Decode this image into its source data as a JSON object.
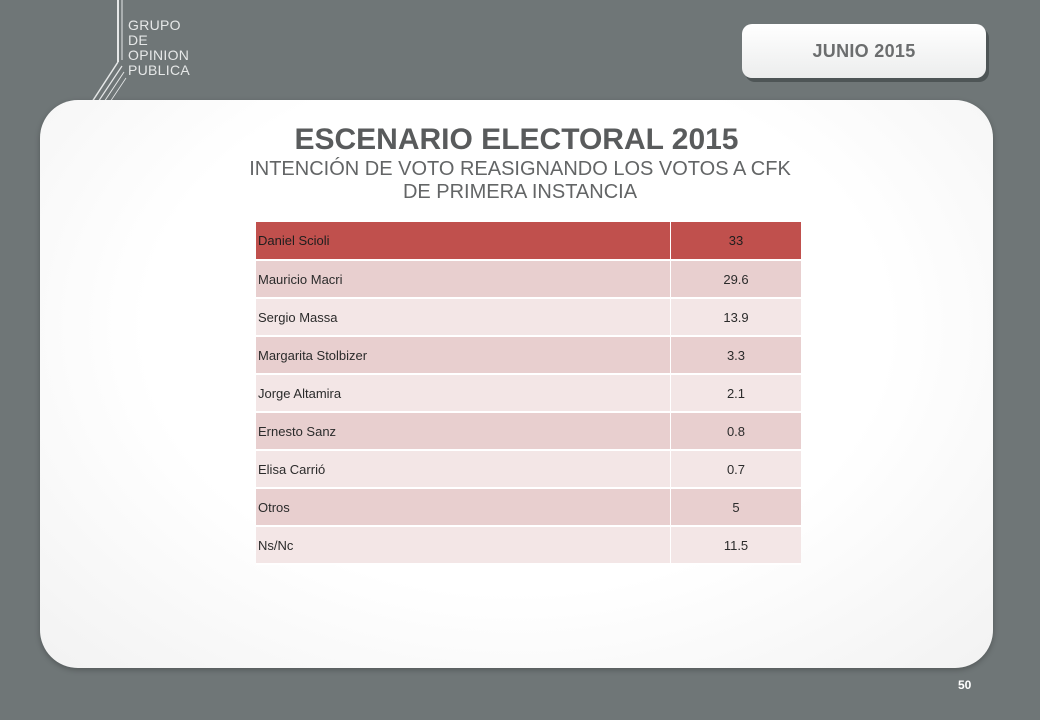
{
  "logo": {
    "lines": [
      "GRUPO",
      "DE",
      "OPINION",
      "PUBLICA"
    ]
  },
  "date_badge": "JUNIO 2015",
  "title": "ESCENARIO ELECTORAL 2015",
  "subtitle": "INTENCIÓN DE VOTO REASIGNANDO LOS VOTOS A CFK DE PRIMERA INSTANCIA",
  "table": {
    "rows": [
      {
        "name": "Daniel Scioli",
        "value": "33"
      },
      {
        "name": "Mauricio Macri",
        "value": "29.6"
      },
      {
        "name": "Sergio Massa",
        "value": "13.9"
      },
      {
        "name": "Margarita Stolbizer",
        "value": "3.3"
      },
      {
        "name": "Jorge Altamira",
        "value": "2.1"
      },
      {
        "name": "Ernesto Sanz",
        "value": "0.8"
      },
      {
        "name": "Elisa Carrió",
        "value": "0.7"
      },
      {
        "name": "Otros",
        "value": "5"
      },
      {
        "name": "Ns/Nc",
        "value": "11.5"
      }
    ]
  },
  "page_number": "50",
  "colors": {
    "background": "#6f7677",
    "header_row": "#c0504d",
    "odd_row": "#e8cfcf",
    "even_row": "#f3e6e6"
  }
}
